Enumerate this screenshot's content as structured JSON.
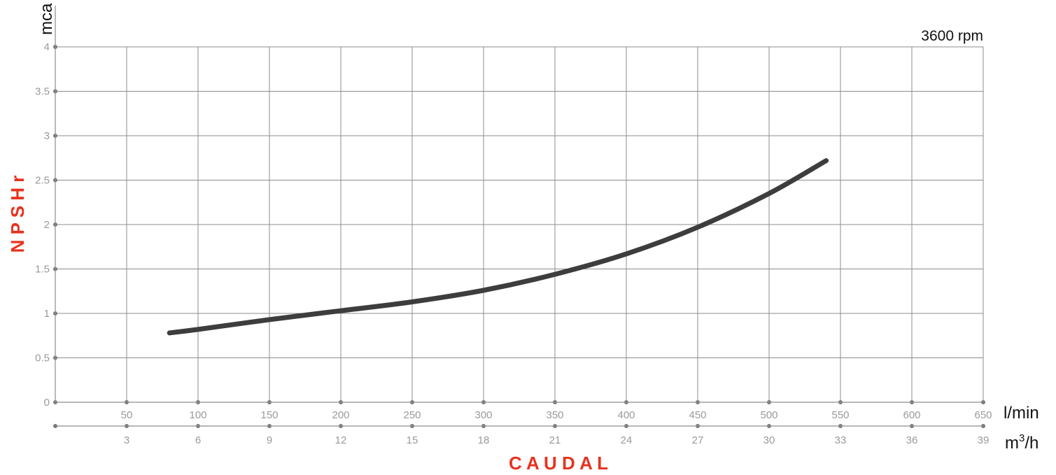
{
  "chart_data": {
    "type": "line",
    "title": "",
    "annotation": "3600 rpm",
    "ylabel": "N P S H r",
    "yunit": "mca",
    "xlabel": "C A U D A L",
    "x_primary_unit": "l/min",
    "x_secondary_unit": "m³/h",
    "x_secondary_unit_base": "m",
    "x_secondary_unit_sup": "3",
    "x_secondary_unit_tail": "/h",
    "xlim": [
      0,
      650
    ],
    "ylim": [
      0,
      4
    ],
    "grid": true,
    "x_ticks_lmin": [
      "50",
      "100",
      "150",
      "200",
      "250",
      "300",
      "350",
      "400",
      "450",
      "500",
      "550",
      "600",
      "650"
    ],
    "x_ticks_m3h": [
      "3",
      "6",
      "9",
      "12",
      "15",
      "18",
      "21",
      "24",
      "27",
      "30",
      "33",
      "36",
      "39"
    ],
    "y_ticks": [
      "0",
      "0.5",
      "1",
      "1.5",
      "2",
      "2.5",
      "3",
      "3.5",
      "4"
    ],
    "series": [
      {
        "color": "#3d3d3d",
        "x": [
          80,
          100,
          150,
          200,
          250,
          300,
          350,
          400,
          450,
          500,
          540
        ],
        "y": [
          0.78,
          0.82,
          0.93,
          1.03,
          1.13,
          1.26,
          1.44,
          1.67,
          1.97,
          2.35,
          2.72
        ]
      }
    ]
  }
}
